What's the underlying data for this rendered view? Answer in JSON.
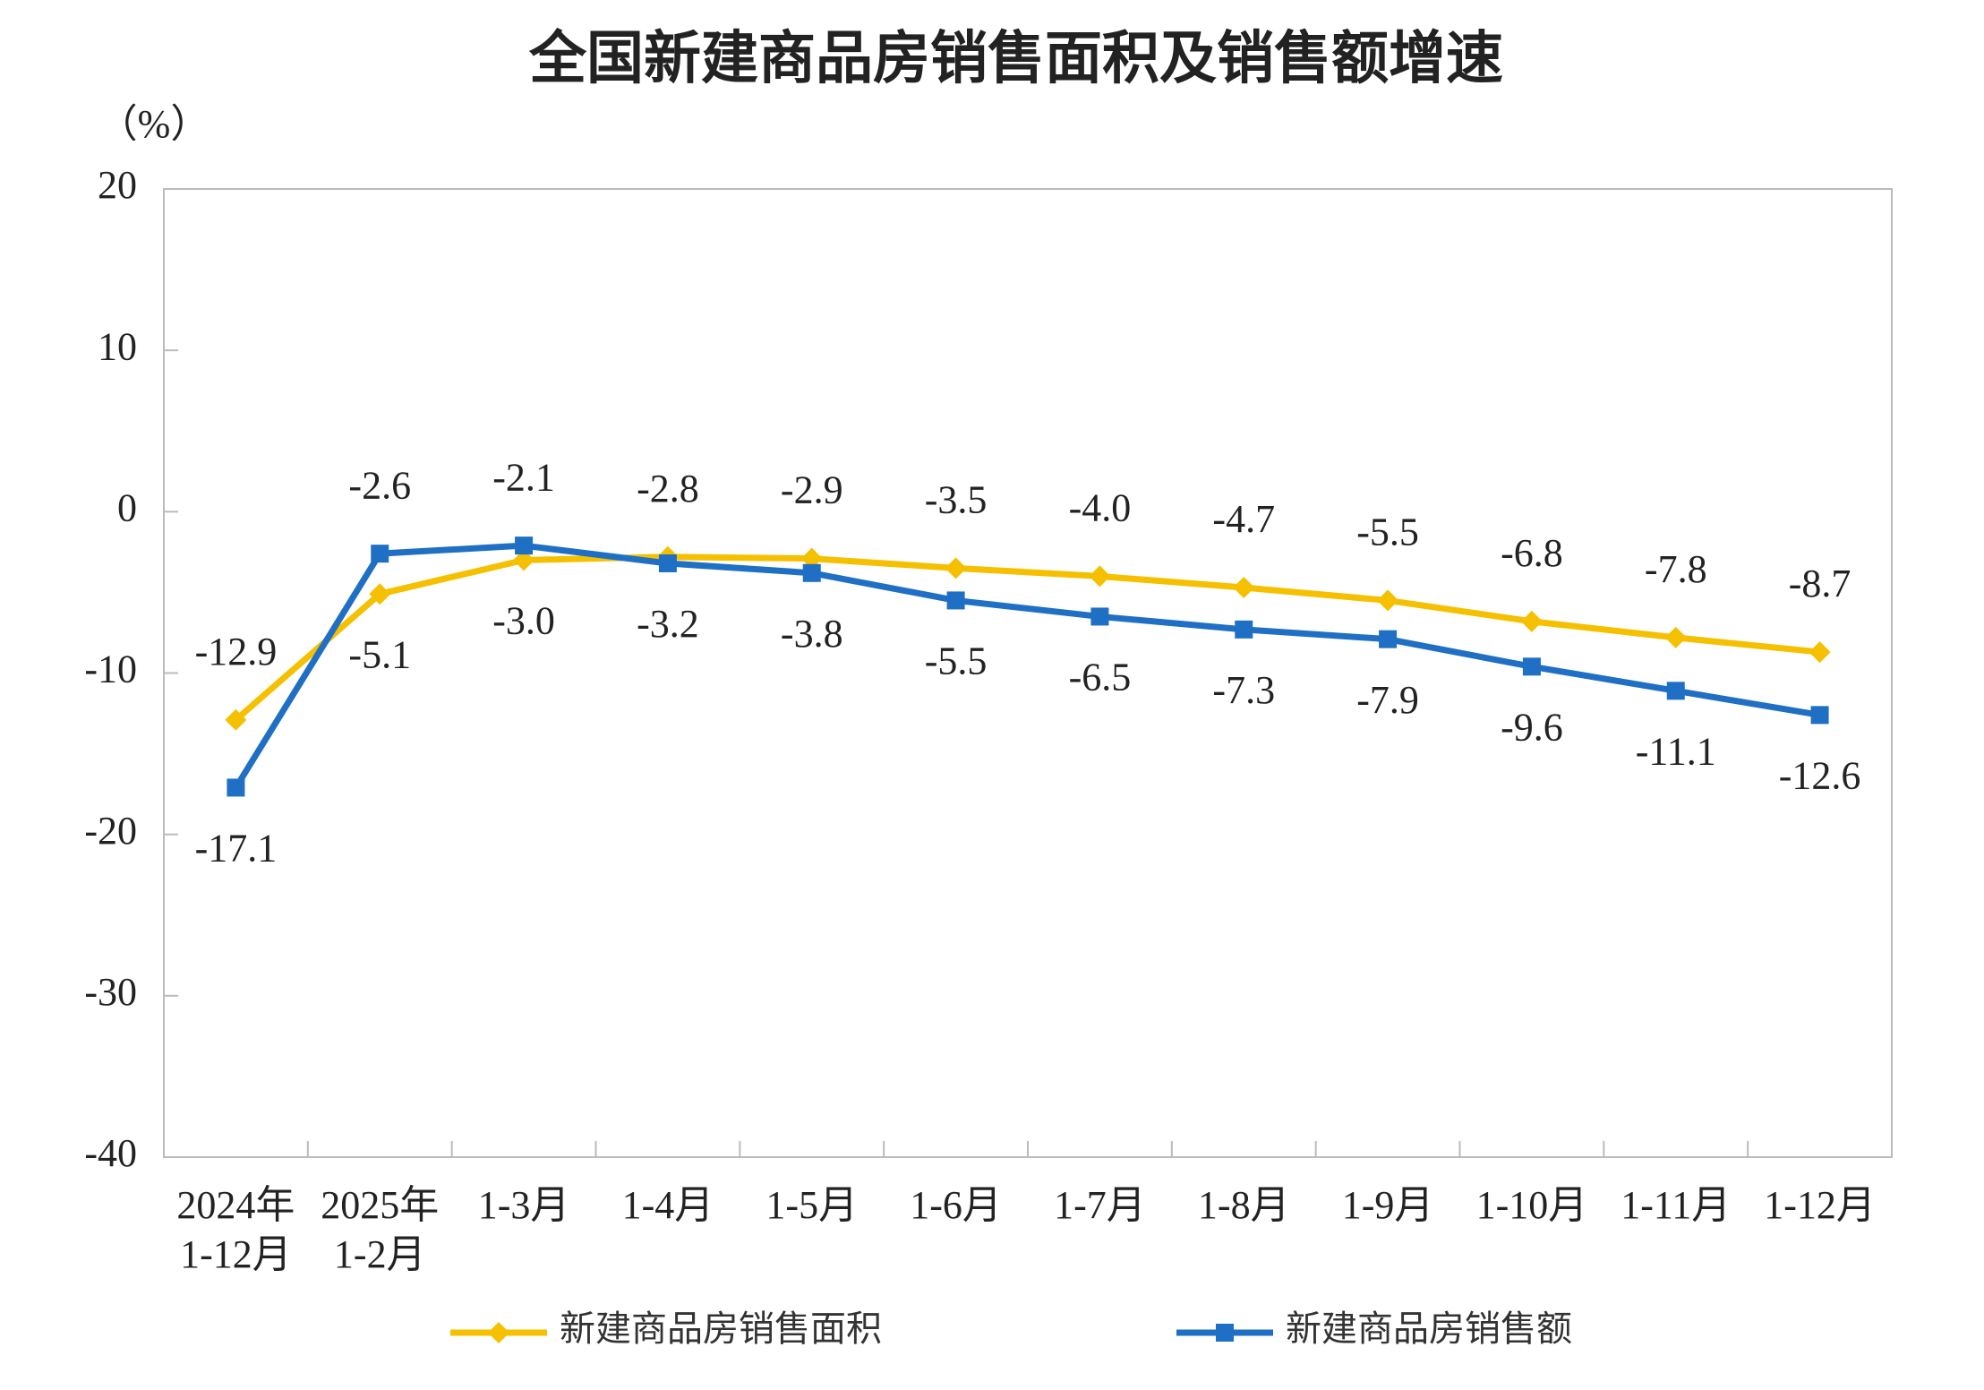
{
  "chart_data": {
    "type": "line",
    "title": "全国新建商品房销售面积及销售额增速",
    "y_unit": "（%）",
    "categories": [
      [
        "2024年",
        "1-12月"
      ],
      [
        "2025年",
        "1-2月"
      ],
      "1-3月",
      "1-4月",
      "1-5月",
      "1-6月",
      "1-7月",
      "1-8月",
      "1-9月",
      "1-10月",
      "1-11月",
      "1-12月"
    ],
    "series": [
      {
        "name": "新建商品房销售面积",
        "color": "#f5c000",
        "marker": "diamond",
        "values": [
          -12.9,
          -5.1,
          -3.0,
          -2.8,
          -2.9,
          -3.5,
          -4.0,
          -4.7,
          -5.5,
          -6.8,
          -7.8,
          -8.7
        ],
        "value_labels": [
          "-12.9",
          "-5.1",
          "-3.0",
          "-2.8",
          "-2.9",
          "-3.5",
          "-4.0",
          "-4.7",
          "-5.5",
          "-6.8",
          "-7.8",
          "-8.7"
        ]
      },
      {
        "name": "新建商品房销售额",
        "color": "#1f6fc5",
        "marker": "square",
        "values": [
          -17.1,
          -2.6,
          -2.1,
          -3.2,
          -3.8,
          -5.5,
          -6.5,
          -7.3,
          -7.9,
          -9.6,
          -11.1,
          -12.6
        ],
        "value_labels": [
          "-17.1",
          "-2.6",
          "-2.1",
          "-3.2",
          "-3.8",
          "-5.5",
          "-6.5",
          "-7.3",
          "-7.9",
          "-9.6",
          "-11.1",
          "-12.6"
        ]
      }
    ],
    "ylim": [
      -40,
      20
    ],
    "yticks": [
      20,
      10,
      0,
      -10,
      -20,
      -30,
      -40
    ],
    "grid": false
  }
}
